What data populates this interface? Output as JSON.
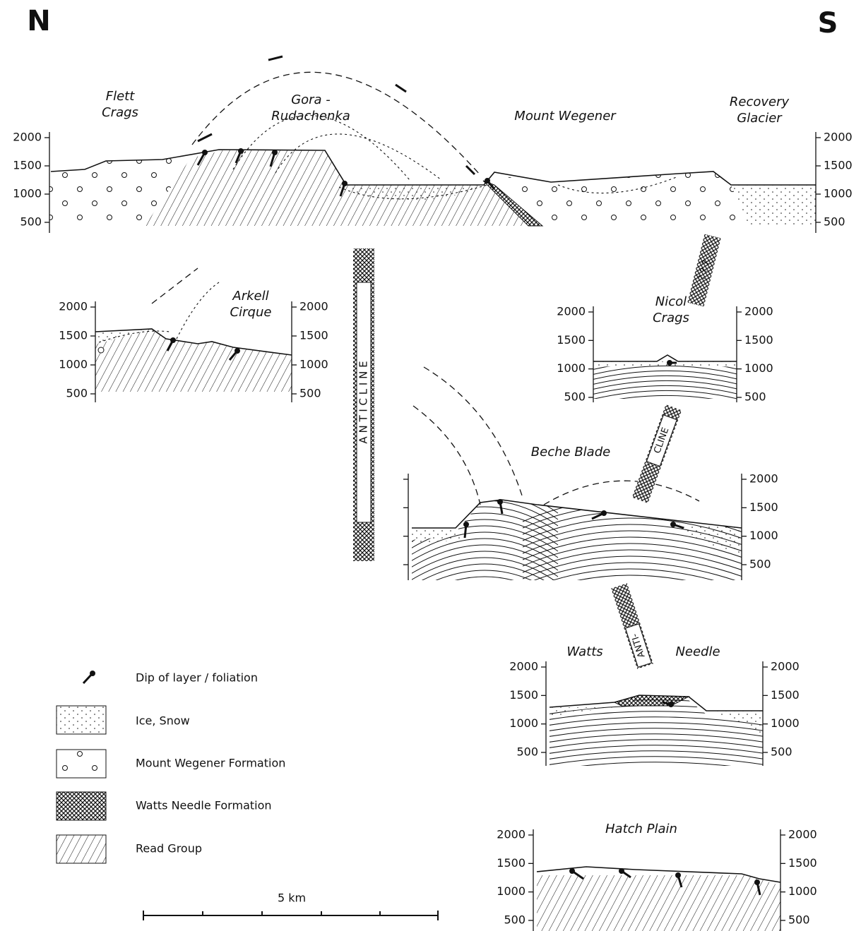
{
  "header": {
    "north": "N",
    "south": "S"
  },
  "sections": [
    {
      "places": [
        [
          "Flett",
          "Crags"
        ],
        [
          "Gora -",
          "Rudachenka"
        ],
        [
          "Mount Wegener"
        ],
        [
          "Recovery",
          "Glacier"
        ]
      ],
      "elevations": [
        2000,
        1500,
        1000,
        500
      ]
    },
    {
      "places": [
        [
          "Arkell",
          "Cirque"
        ]
      ],
      "elevations": [
        2000,
        1500,
        1000,
        500
      ]
    },
    {
      "places": [
        [
          "Nicol",
          "Crags"
        ]
      ],
      "elevations": [
        2000,
        1500,
        1000,
        500
      ]
    },
    {
      "places": [
        [
          "Beche Blade"
        ]
      ],
      "elevations": [
        2000,
        1500,
        1000,
        500
      ]
    },
    {
      "places": [
        [
          "Watts"
        ],
        [
          "Needle"
        ]
      ],
      "elevations": [
        2000,
        1500,
        1000,
        500
      ]
    },
    {
      "places": [
        [
          "Hatch Plain"
        ]
      ],
      "elevations": [
        2000,
        1500,
        1000,
        500
      ]
    }
  ],
  "bands": [
    "A N T I C L I N E",
    "? ? ?",
    "CLINE",
    "ANTI-"
  ],
  "legend": [
    "Dip of layer / foliation",
    "Ice, Snow",
    "Mount Wegener Formation",
    "Watts Needle Formation",
    "Read Group"
  ],
  "scale": "5 km"
}
